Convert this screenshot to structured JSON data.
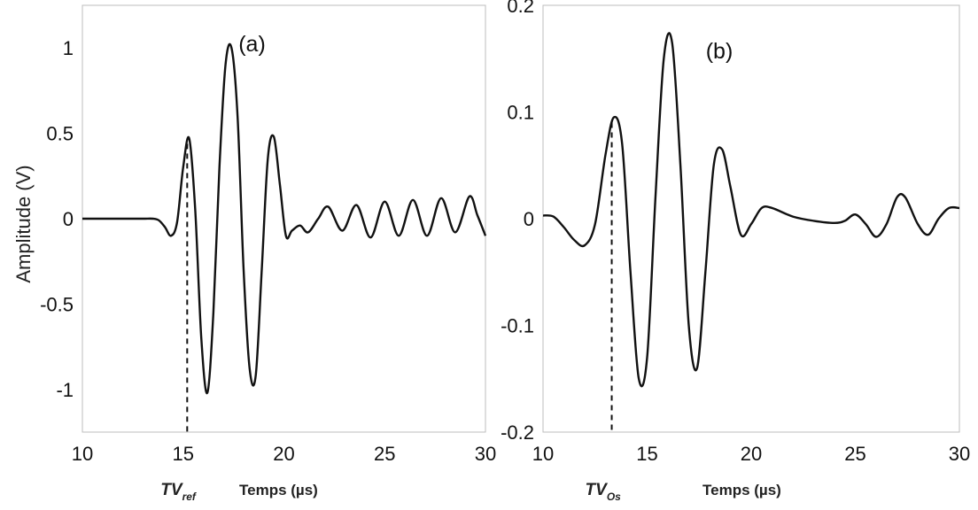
{
  "y_axis_label": "Amplitude (V)",
  "chart_data": [
    {
      "type": "line",
      "panel_label": "(a)",
      "xlabel": "Temps (µs)",
      "ylabel": "Amplitude (V)",
      "xlim": [
        10,
        30
      ],
      "ylim": [
        -1.25,
        1.25
      ],
      "xticks": [
        10,
        15,
        20,
        25,
        30
      ],
      "yticks": [
        -1,
        -0.5,
        0,
        0.5,
        1
      ],
      "ytick_labels": [
        "-1",
        "-0.5",
        "0",
        "0.5",
        "1"
      ],
      "marker": {
        "label_main": "TV",
        "label_sub": "ref",
        "x": 15.2
      },
      "series": [
        {
          "x": [
            10,
            11,
            12,
            13,
            13.5,
            13.8,
            14.1,
            14.4,
            14.7,
            15.0,
            15.3,
            15.6,
            15.9,
            16.2,
            16.5,
            16.8,
            17.1,
            17.4,
            17.7,
            18.0,
            18.3,
            18.6,
            18.9,
            19.2,
            19.5,
            19.8,
            20.1,
            20.4,
            20.8,
            21.2,
            21.7,
            22.2,
            22.9,
            23.6,
            24.3,
            25.0,
            25.7,
            26.4,
            27.1,
            27.8,
            28.5,
            29.2,
            29.6,
            30.0
          ],
          "values": [
            0,
            0,
            0,
            0,
            0,
            -0.01,
            -0.05,
            -0.1,
            -0.02,
            0.3,
            0.47,
            0.05,
            -0.7,
            -1.02,
            -0.55,
            0.3,
            0.9,
            1.0,
            0.6,
            -0.3,
            -0.88,
            -0.92,
            -0.3,
            0.35,
            0.48,
            0.2,
            -0.1,
            -0.07,
            -0.04,
            -0.08,
            0.0,
            0.07,
            -0.07,
            0.08,
            -0.11,
            0.1,
            -0.1,
            0.11,
            -0.1,
            0.12,
            -0.08,
            0.13,
            0.02,
            -0.1
          ]
        }
      ]
    },
    {
      "type": "line",
      "panel_label": "(b)",
      "xlabel": "Temps (µs)",
      "xlim": [
        10,
        30
      ],
      "ylim": [
        -0.2,
        0.2
      ],
      "xticks": [
        10,
        15,
        20,
        25,
        30
      ],
      "yticks": [
        -0.2,
        -0.1,
        0,
        0.1,
        0.2
      ],
      "ytick_labels": [
        "-0.2",
        "-0.1",
        "0",
        "0.1",
        "0.2"
      ],
      "marker": {
        "label_main": "TV",
        "label_sub": "Os",
        "x": 13.3
      },
      "series": [
        {
          "x": [
            10,
            10.5,
            11,
            11.5,
            12,
            12.5,
            13,
            13.4,
            13.8,
            14.2,
            14.6,
            15.0,
            15.4,
            15.8,
            16.2,
            16.6,
            17.0,
            17.4,
            17.8,
            18.2,
            18.6,
            19.0,
            19.5,
            20.0,
            20.5,
            21.0,
            22.0,
            23.0,
            24.0,
            24.5,
            25.0,
            25.5,
            26.0,
            26.5,
            27.0,
            27.4,
            28.0,
            28.5,
            29.0,
            29.5,
            30.0
          ],
          "values": [
            0.003,
            0.002,
            -0.008,
            -0.02,
            -0.025,
            -0.005,
            0.06,
            0.095,
            0.07,
            -0.05,
            -0.15,
            -0.13,
            0.02,
            0.15,
            0.165,
            0.05,
            -0.1,
            -0.14,
            -0.05,
            0.05,
            0.065,
            0.03,
            -0.015,
            -0.005,
            0.01,
            0.01,
            0.002,
            -0.002,
            -0.004,
            -0.002,
            0.004,
            -0.005,
            -0.017,
            -0.005,
            0.02,
            0.02,
            -0.005,
            -0.015,
            0.0,
            0.01,
            0.01
          ]
        }
      ]
    }
  ]
}
